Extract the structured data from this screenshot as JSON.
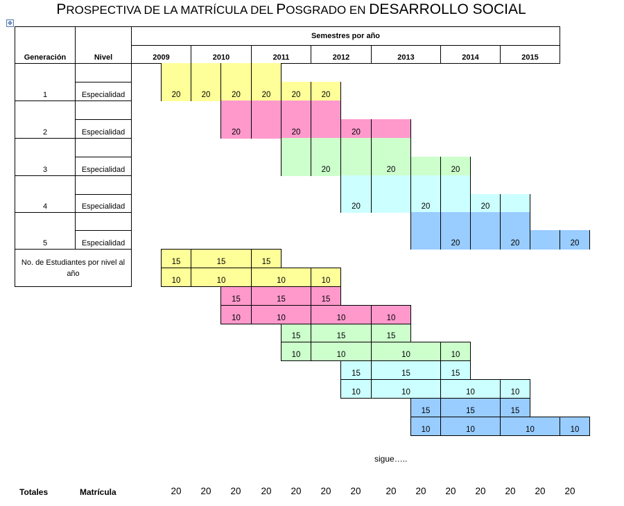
{
  "title": {
    "part1_cap": "P",
    "part1": "ROSPECTIVA DE LA MATRÍCULA DEL ",
    "part2_cap": "P",
    "part2": "OSGRADO EN ",
    "part3": "DESARROLLO SOCIAL"
  },
  "headers": {
    "generacion": "Generación",
    "nivel": "Nivel",
    "semestres": "Semestres por año",
    "years": [
      "2009",
      "2010",
      "2011",
      "2012",
      "2013",
      "2014",
      "2015"
    ]
  },
  "generations": [
    {
      "num": "1",
      "nivel": "Especialidad",
      "color": "#ffff99",
      "values": [
        "20",
        "20",
        "20",
        "20",
        "20",
        "20"
      ]
    },
    {
      "num": "2",
      "nivel": "Especialidad",
      "color": "#ff99cc",
      "values": [
        "20",
        "20",
        "20"
      ]
    },
    {
      "num": "3",
      "nivel": "Especialidad",
      "color": "#ccffcc",
      "values": [
        "20",
        "20",
        "20"
      ]
    },
    {
      "num": "4",
      "nivel": "Especialidad",
      "color": "#ccffff",
      "values": [
        "20",
        "20",
        "20"
      ]
    },
    {
      "num": "5",
      "nivel": "Especialidad",
      "color": "#99ccff",
      "values": [
        "20",
        "20",
        "20"
      ]
    }
  ],
  "students_label": "No. de Estudiantes por nivel al año",
  "students": [
    [
      "15",
      "15",
      "15"
    ],
    [
      "10",
      "10",
      "10",
      "10"
    ],
    [
      "15",
      "15",
      "15"
    ],
    [
      "10",
      "10",
      "10",
      "10"
    ],
    [
      "15",
      "15",
      "15"
    ],
    [
      "10",
      "10",
      "10",
      "10"
    ],
    [
      "15",
      "15",
      "15"
    ],
    [
      "10",
      "10",
      "10",
      "10"
    ],
    [
      "15",
      "15",
      "15"
    ],
    [
      "10",
      "10",
      "10",
      "10"
    ]
  ],
  "sigue": "sigue…..",
  "footer": {
    "totales": "Totales",
    "matricula": "Matrícula",
    "values": [
      "20",
      "20",
      "20",
      "20",
      "20",
      "20",
      "20",
      "20",
      "20",
      "20",
      "20",
      "20",
      "20",
      "20"
    ]
  }
}
